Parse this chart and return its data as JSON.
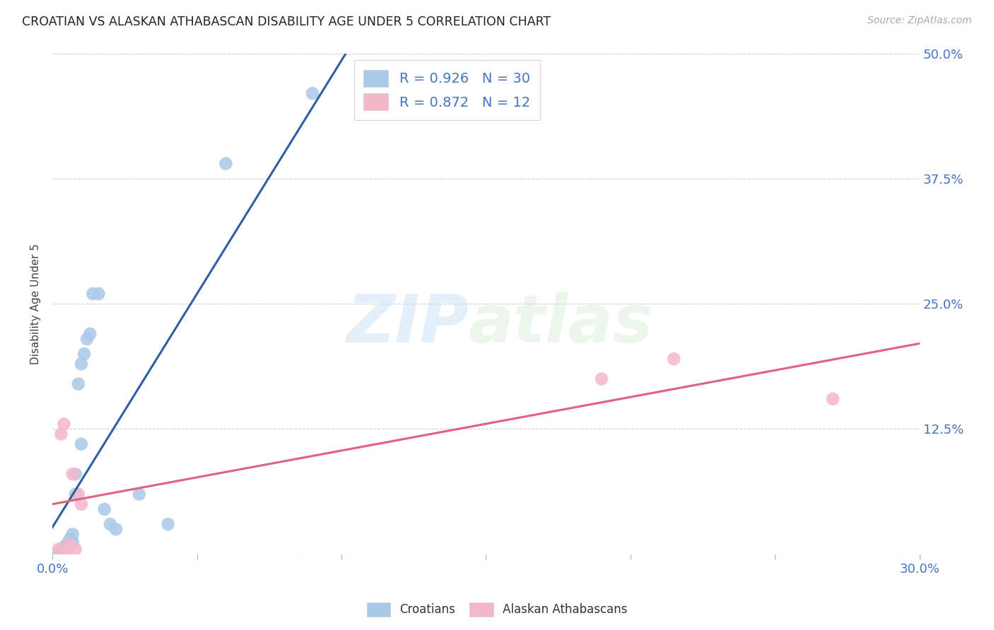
{
  "title": "CROATIAN VS ALASKAN ATHABASCAN DISABILITY AGE UNDER 5 CORRELATION CHART",
  "source": "Source: ZipAtlas.com",
  "ylabel": "Disability Age Under 5",
  "xlim": [
    0.0,
    0.3
  ],
  "ylim": [
    0.0,
    0.5
  ],
  "xtick_positions": [
    0.0,
    0.05,
    0.1,
    0.15,
    0.2,
    0.25,
    0.3
  ],
  "xtick_labels": [
    "0.0%",
    "",
    "",
    "",
    "",
    "",
    "30.0%"
  ],
  "ytick_positions": [
    0.0,
    0.125,
    0.25,
    0.375,
    0.5
  ],
  "ytick_labels_right": [
    "",
    "12.5%",
    "25.0%",
    "37.5%",
    "50.0%"
  ],
  "croatian_x": [
    0.002,
    0.003,
    0.003,
    0.004,
    0.004,
    0.004,
    0.005,
    0.005,
    0.005,
    0.006,
    0.006,
    0.007,
    0.007,
    0.008,
    0.008,
    0.009,
    0.01,
    0.01,
    0.011,
    0.012,
    0.013,
    0.014,
    0.016,
    0.018,
    0.02,
    0.022,
    0.03,
    0.04,
    0.06,
    0.09
  ],
  "croatian_y": [
    0.002,
    0.003,
    0.004,
    0.005,
    0.006,
    0.007,
    0.005,
    0.008,
    0.01,
    0.01,
    0.015,
    0.012,
    0.02,
    0.06,
    0.08,
    0.17,
    0.11,
    0.19,
    0.2,
    0.215,
    0.22,
    0.26,
    0.26,
    0.045,
    0.03,
    0.025,
    0.06,
    0.03,
    0.39,
    0.46
  ],
  "alaskan_x": [
    0.002,
    0.003,
    0.004,
    0.005,
    0.006,
    0.007,
    0.008,
    0.009,
    0.01,
    0.19,
    0.215,
    0.27
  ],
  "alaskan_y": [
    0.005,
    0.12,
    0.13,
    0.005,
    0.01,
    0.08,
    0.005,
    0.06,
    0.05,
    0.175,
    0.195,
    0.155
  ],
  "croatian_color": "#aac8e8",
  "alaskan_color": "#f5b8cb",
  "croatian_line_color": "#2e5fa3",
  "alaskan_line_color": "#e06080",
  "R_croatian": "0.926",
  "N_croatian": "30",
  "R_alaskan": "0.872",
  "N_alaskan": "12",
  "watermark_zip": "ZIP",
  "watermark_atlas": "atlas",
  "legend_croatians": "Croatians",
  "legend_alaskans": "Alaskan Athabascans",
  "background_color": "#ffffff",
  "grid_color": "#d0d0d0",
  "tick_label_color": "#4472c4"
}
